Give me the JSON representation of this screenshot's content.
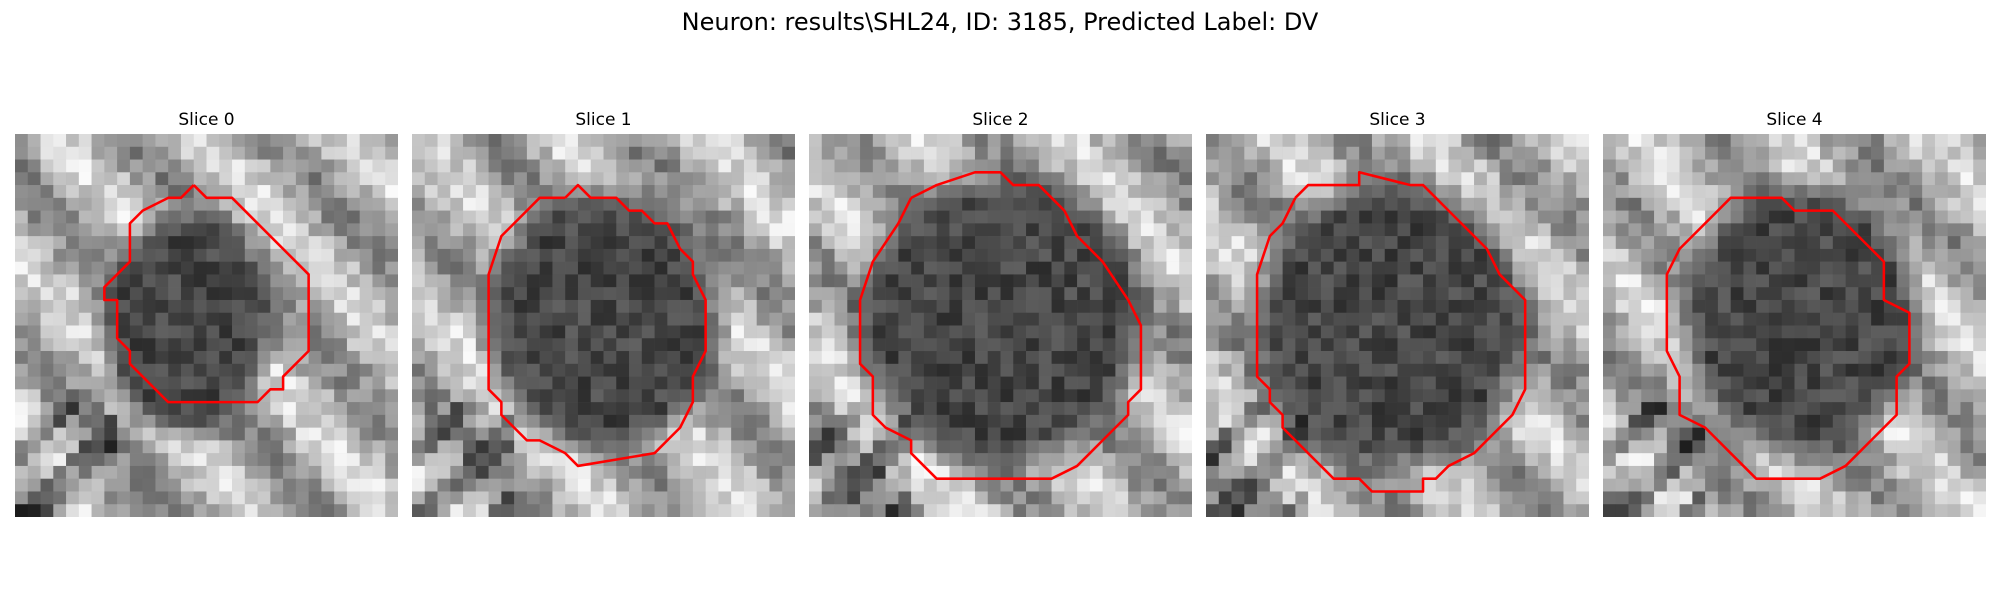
{
  "figure": {
    "title": "Neuron: results\\SHL24, ID: 3185, Predicted Label: DV"
  },
  "contour_color": "#ff0000",
  "colormap": "gray",
  "panels": [
    {
      "title": "Slice 0"
    },
    {
      "title": "Slice 1"
    },
    {
      "title": "Slice 2"
    },
    {
      "title": "Slice 3"
    },
    {
      "title": "Slice 4"
    }
  ]
}
